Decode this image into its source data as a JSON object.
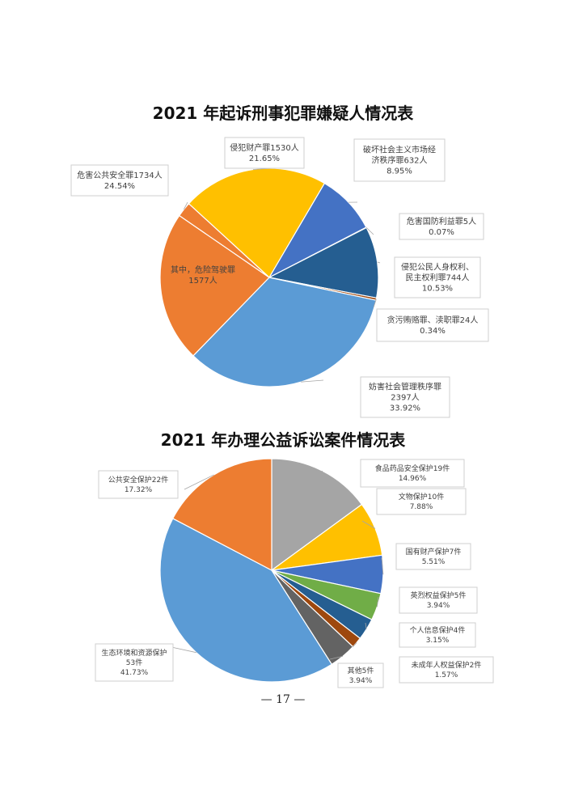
{
  "page_number": "— 17 —",
  "chart_data": [
    {
      "type": "pie",
      "title": "2021 年起诉刑事犯罪嫌疑人情况表",
      "slices": [
        {
          "name": "侵犯财产罪",
          "label": [
            "侵犯财产罪1530人",
            "21.65%"
          ],
          "value": 21.65,
          "color": "#FFC000"
        },
        {
          "name": "破坏社会主义市场经济秩序罪",
          "label": [
            "破坏社会主义市场经",
            "济秩序罪632人",
            "8.95%"
          ],
          "value": 8.95,
          "color": "#4472C4"
        },
        {
          "name": "危害国防利益罪",
          "label": [
            "危害国防利益罪5人",
            "0.07%"
          ],
          "value": 0.07,
          "color": "#C0504D"
        },
        {
          "name": "侵犯公民人身权利、民主权利罪",
          "label": [
            "侵犯公民人身权利、",
            "民主权利罪744人",
            "10.53%"
          ],
          "value": 10.53,
          "color": "#255E91"
        },
        {
          "name": "贪污贿赂罪、渎职罪",
          "label": [
            "贪污贿赂罪、渎职罪24人",
            "0.34%"
          ],
          "value": 0.34,
          "color": "#9E480E"
        },
        {
          "name": "妨害社会管理秩序罪",
          "label": [
            "妨害社会管理秩序罪",
            "2397人",
            "33.92%"
          ],
          "value": 33.92,
          "color": "#5B9BD5"
        },
        {
          "name": "危害公共安全罪-危险驾驶罪",
          "label": [
            "其中，危险驾驶罪",
            "1577人"
          ],
          "value": 22.32,
          "color": "#ED7D31"
        },
        {
          "name": "危害公共安全罪-其他",
          "label": [
            "危害公共安全罪1734人",
            "24.54%"
          ],
          "value": 2.22,
          "color": "#ED7D31"
        }
      ]
    },
    {
      "type": "pie",
      "title": "2021 年办理公益诉讼案件情况表",
      "slices": [
        {
          "name": "食品药品安全保护",
          "label": [
            "食品药品安全保护19件",
            "14.96%"
          ],
          "value": 14.96,
          "color": "#A5A5A5"
        },
        {
          "name": "文物保护",
          "label": [
            "文物保护10件",
            "7.88%"
          ],
          "value": 7.88,
          "color": "#FFC000"
        },
        {
          "name": "国有财产保护",
          "label": [
            "国有财产保护7件",
            "5.51%"
          ],
          "value": 5.51,
          "color": "#4472C4"
        },
        {
          "name": "英烈权益保护",
          "label": [
            "英烈权益保护5件",
            "3.94%"
          ],
          "value": 3.94,
          "color": "#70AD47"
        },
        {
          "name": "个人信息保护",
          "label": [
            "个人信息保护4件",
            "3.15%"
          ],
          "value": 3.15,
          "color": "#255E91"
        },
        {
          "name": "未成年人权益保护",
          "label": [
            "未成年人权益保护2件",
            "1.57%"
          ],
          "value": 1.57,
          "color": "#9E480E"
        },
        {
          "name": "其他",
          "label": [
            "其他5件",
            "3.94%"
          ],
          "value": 3.94,
          "color": "#636363"
        },
        {
          "name": "生态环境和资源保护",
          "label": [
            "生态环境和资源保护",
            "53件",
            "41.73%"
          ],
          "value": 41.73,
          "color": "#5B9BD5"
        },
        {
          "name": "公共安全保护",
          "label": [
            "公共安全保护22件",
            "17.32%"
          ],
          "value": 17.32,
          "color": "#ED7D31"
        }
      ]
    }
  ]
}
